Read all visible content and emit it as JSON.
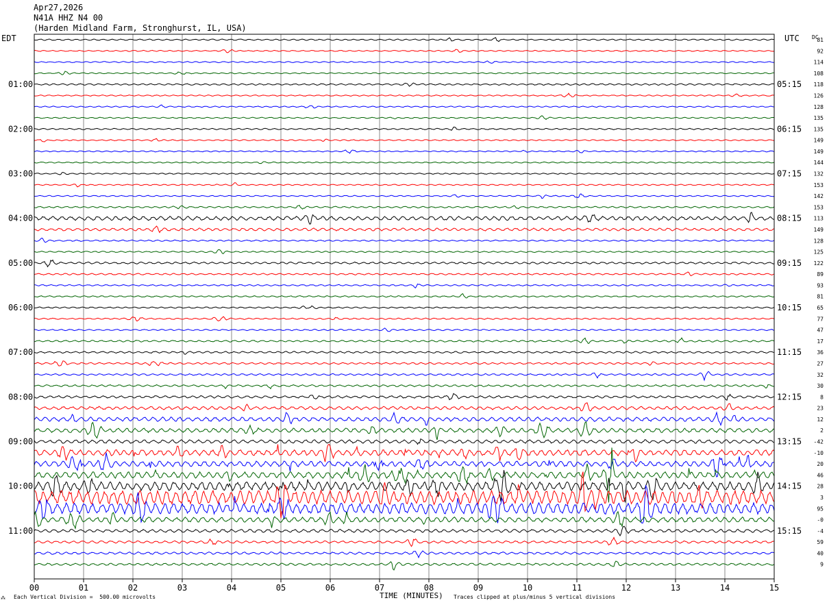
{
  "header": {
    "date": "Apr27,2026",
    "station": "N41A HHZ N4 00",
    "location": "(Harden Midland Farm, Stronghurst, IL, USA)"
  },
  "chart_data": {
    "type": "helicorder",
    "left_tz": "EDT",
    "right_tz": "UTC",
    "dc_label": "DC",
    "left_hour_labels": [
      "01:00",
      "02:00",
      "03:00",
      "04:00",
      "05:00",
      "06:00",
      "07:00",
      "08:00",
      "09:00",
      "10:00",
      "11:00"
    ],
    "right_hour_labels": [
      "05:15",
      "06:15",
      "07:15",
      "08:15",
      "09:15",
      "10:15",
      "11:15",
      "12:15",
      "13:15",
      "14:15",
      "15:15"
    ],
    "dc_values": [
      "81",
      "92",
      "114",
      "108",
      "118",
      "126",
      "128",
      "135",
      "135",
      "149",
      "149",
      "144",
      "132",
      "153",
      "142",
      "153",
      "113",
      "149",
      "128",
      "125",
      "122",
      "89",
      "93",
      "81",
      "65",
      "77",
      "47",
      "17",
      "36",
      "27",
      "32",
      "30",
      "8",
      "23",
      "12",
      "2",
      "-42",
      "-10",
      "20",
      "46",
      "28",
      "3",
      "95",
      "-0",
      "-4",
      "59",
      "40",
      "9"
    ],
    "trace_colors": [
      "#000000",
      "#ff0000",
      "#0000ff",
      "#006400"
    ],
    "x_ticks": [
      "00",
      "01",
      "02",
      "03",
      "04",
      "05",
      "06",
      "07",
      "08",
      "09",
      "10",
      "11",
      "12",
      "13",
      "14",
      "15"
    ],
    "xlabel": "TIME (MINUTES)",
    "scale_note": "Each Vertical Division =  500.00 microvolts",
    "clip_note": "Traces clipped at plus/minus 5 vertical divisions",
    "trace_amplitude": [
      0.35,
      0.3,
      0.3,
      0.3,
      0.4,
      0.3,
      0.3,
      0.3,
      0.35,
      0.3,
      0.3,
      0.3,
      0.3,
      0.3,
      0.3,
      0.4,
      1.0,
      0.7,
      0.35,
      0.35,
      0.5,
      0.4,
      0.35,
      0.35,
      0.35,
      0.35,
      0.35,
      0.45,
      0.45,
      0.45,
      0.45,
      0.5,
      0.6,
      0.8,
      1.1,
      1.1,
      0.9,
      1.5,
      1.4,
      1.6,
      2.2,
      3.5,
      2.8,
      1.3,
      0.8,
      0.6,
      0.6,
      0.6
    ]
  }
}
